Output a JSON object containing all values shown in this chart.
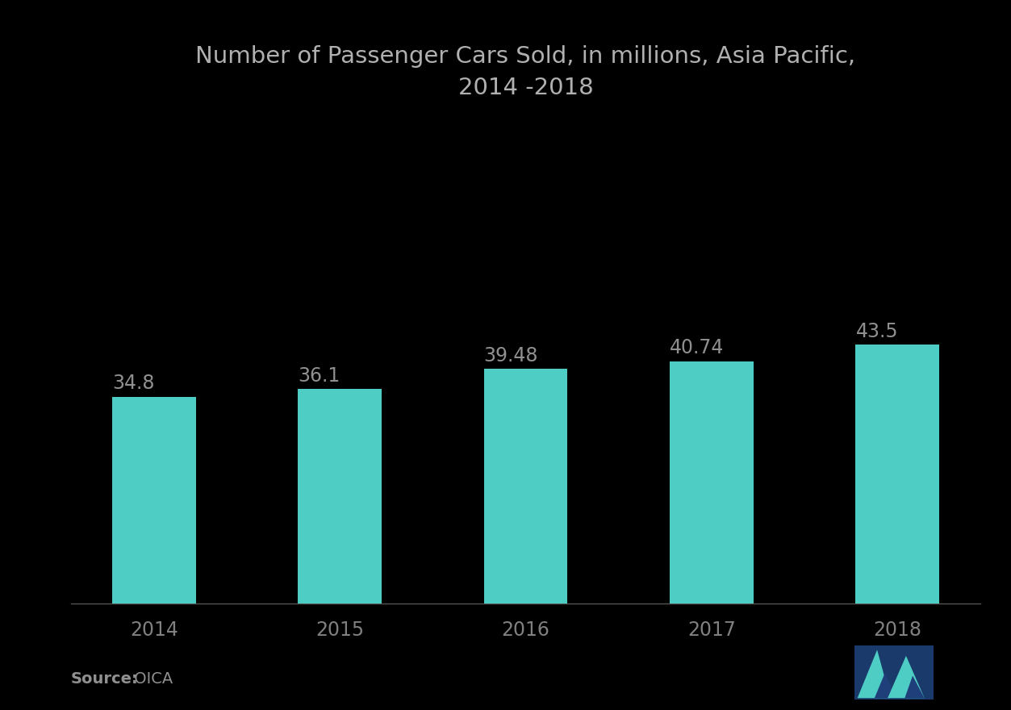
{
  "title": "Number of Passenger Cars Sold, in millions, Asia Pacific,\n2014 -2018",
  "categories": [
    "2014",
    "2015",
    "2016",
    "2017",
    "2018"
  ],
  "values": [
    34.8,
    36.1,
    39.48,
    40.74,
    43.5
  ],
  "bar_color": "#4ECDC4",
  "background_color": "#000000",
  "title_color": "#b0b0b0",
  "label_color": "#909090",
  "axis_label_color": "#808080",
  "source_bold": "Source:",
  "source_normal": " OICA",
  "title_fontsize": 21,
  "label_fontsize": 17,
  "tick_fontsize": 17,
  "source_fontsize": 14,
  "ylim": [
    0,
    80
  ],
  "bar_width": 0.45,
  "spine_color": "#555555",
  "logo_bg_color": "#1a3a6b",
  "logo_teal": "#4ECDC4",
  "logo_dark": "#1f3f7a"
}
